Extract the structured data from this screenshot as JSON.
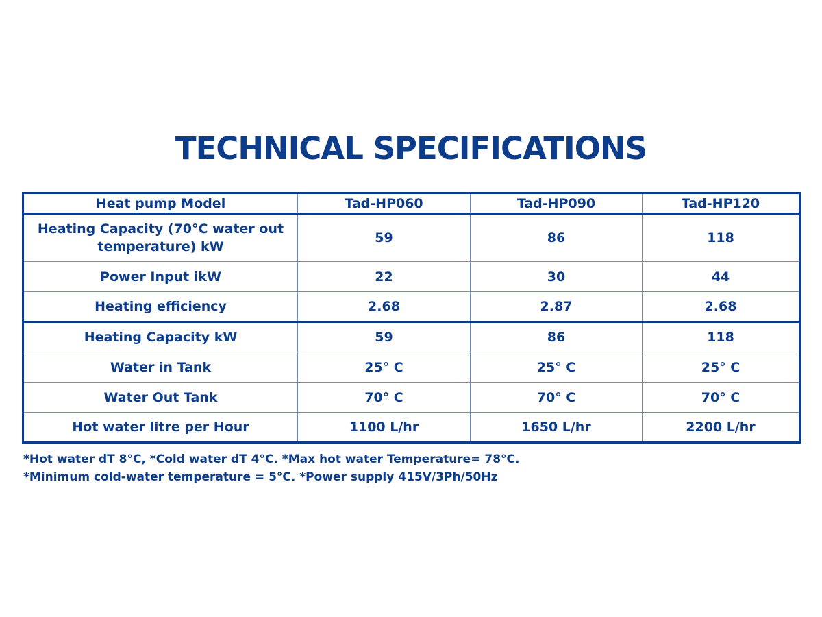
{
  "title": "TECHNICAL SPECIFICATIONS",
  "table": {
    "headers": [
      "Heat pump Model",
      "Tad-HP060",
      "Tad-HP090",
      "Tad-HP120"
    ],
    "rows": [
      [
        "Heating Capacity (70°C water out temperature) kW",
        "59",
        "86",
        "118"
      ],
      [
        "Power Input ikW",
        "22",
        "30",
        "44"
      ],
      [
        "Heating efficiency",
        "2.68",
        "2.87",
        "2.68"
      ],
      [
        "Heating Capacity kW",
        "59",
        "86",
        "118"
      ],
      [
        "Water in Tank",
        "25° C",
        "25° C",
        "25° C"
      ],
      [
        "Water Out Tank",
        "70° C",
        "70° C",
        "70° C"
      ],
      [
        "Hot water litre per Hour",
        "1100 L/hr",
        "1650 L/hr",
        "2200 L/hr"
      ]
    ]
  },
  "notes": [
    "*Hot water dT 8°C, *Cold water dT 4°C.  *Max hot water Temperature= 78°C.",
    "*Minimum cold-water temperature = 5°C. *Power supply 415V/3Ph/50Hz"
  ],
  "colors": {
    "text": "#0d3d8a",
    "border": "#0d3d8a"
  }
}
